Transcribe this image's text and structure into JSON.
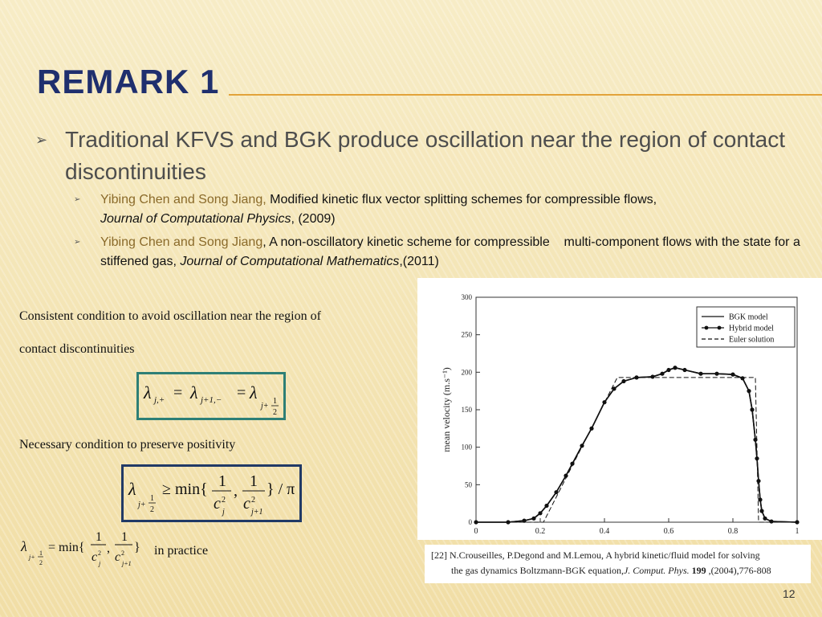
{
  "slide": {
    "title": "REMARK 1",
    "page_number": "12"
  },
  "bullets": {
    "main": "Traditional KFVS and BGK produce oscillation near the region of contact discontinuities",
    "ref1": {
      "authors": "Yibing Chen and Song Jiang,",
      "title": " Modified kinetic flux vector splitting schemes for compressible flows,",
      "journal": "Journal of Computational Physics",
      "year": ", (2009)"
    },
    "ref2": {
      "authors": "Yibing Chen and Song Jiang",
      "title": ", A non-oscillatory kinetic scheme for compressible    multi-component flows with the state for a stiffened gas, ",
      "journal": "Journal of Computational Mathematics",
      "year": ",(2011)"
    }
  },
  "conditions": {
    "consistent_line1": "Consistent condition to avoid oscillation near the region of",
    "consistent_line2": "contact discontinuities",
    "necessary": "Necessary condition to preserve positivity",
    "in_practice": "in practice"
  },
  "equations": {
    "eq1": {
      "lambda": "λ",
      "sub1": "j,+",
      "eq": "=",
      "sub2": "j+1,−",
      "eq2": "=",
      "sub3_j": "j+",
      "one": "1",
      "two": "2"
    },
    "eq2": {
      "lambda": "λ",
      "geq": "≥ min{",
      "one": "1",
      "c": "c",
      "sq": "2",
      "sub_j": "j",
      "sub_j1": "j+1",
      "comma": ",",
      "close": "} / π",
      "j_plus": "j+"
    },
    "eq3": {
      "lambda": "λ",
      "eqmin": "= min{",
      "close": "}",
      "one": "1",
      "c": "c",
      "sq": "2",
      "sub_j": "j",
      "sub_j1": "j+1",
      "comma": ",",
      "j_plus": "j+",
      "two": "2"
    }
  },
  "reference": {
    "line1": "[22]  N.Crouseilles, P.Degond and M.Lemou, A hybrid kinetic/fluid model for solving",
    "line2_prefix": "the gas dynamics Boltzmann-BGK equation,",
    "line2_journal": "J. Comput. Phys.",
    "line2_volume": "199",
    "line2_suffix": ",(2004),776-808"
  },
  "chart_data": {
    "type": "line",
    "ylabel": "mean velocity (m.s⁻¹)",
    "xlabel": "",
    "xlim": [
      0,
      1
    ],
    "ylim": [
      0,
      300
    ],
    "x_ticks": [
      "0",
      "0.2",
      "0.4",
      "0.6",
      "0.8",
      "1"
    ],
    "y_ticks": [
      "0",
      "50",
      "100",
      "150",
      "200",
      "250",
      "300"
    ],
    "legend_position": "top-right",
    "series": [
      {
        "name": "BGK model",
        "style": "solid",
        "x": [
          0,
          0.1,
          0.15,
          0.18,
          0.2,
          0.22,
          0.25,
          0.28,
          0.3,
          0.33,
          0.36,
          0.4,
          0.43,
          0.46,
          0.5,
          0.55,
          0.58,
          0.6,
          0.62,
          0.65,
          0.7,
          0.75,
          0.8,
          0.83,
          0.85,
          0.86,
          0.87,
          0.875,
          0.88,
          0.885,
          0.89,
          0.9,
          0.92,
          1
        ],
        "y": [
          0,
          0,
          2,
          5,
          12,
          22,
          40,
          62,
          78,
          102,
          125,
          160,
          178,
          188,
          193,
          194,
          198,
          203,
          206,
          203,
          198,
          198,
          197,
          192,
          175,
          150,
          110,
          85,
          55,
          30,
          15,
          5,
          1,
          0
        ]
      },
      {
        "name": "Hybrid model",
        "style": "solid-dots",
        "x": [
          0,
          0.1,
          0.15,
          0.18,
          0.2,
          0.22,
          0.25,
          0.28,
          0.3,
          0.33,
          0.36,
          0.4,
          0.43,
          0.46,
          0.5,
          0.55,
          0.58,
          0.6,
          0.62,
          0.65,
          0.7,
          0.75,
          0.8,
          0.83,
          0.85,
          0.86,
          0.87,
          0.875,
          0.88,
          0.885,
          0.89,
          0.9,
          0.92,
          1
        ],
        "y": [
          0,
          0,
          2,
          5,
          12,
          22,
          40,
          62,
          78,
          102,
          125,
          160,
          178,
          188,
          193,
          194,
          198,
          203,
          206,
          203,
          198,
          198,
          197,
          192,
          175,
          150,
          110,
          85,
          55,
          30,
          15,
          5,
          1,
          0
        ]
      },
      {
        "name": "Euler solution",
        "style": "dashed",
        "x": [
          0,
          0.21,
          0.44,
          0.87,
          0.88,
          1
        ],
        "y": [
          0,
          0,
          193,
          193,
          0,
          0
        ]
      }
    ]
  },
  "colors": {
    "title": "#1f2f6e",
    "rule": "#e2a33a",
    "box1_border": "#2e7f76",
    "box2_border": "#213a66"
  }
}
